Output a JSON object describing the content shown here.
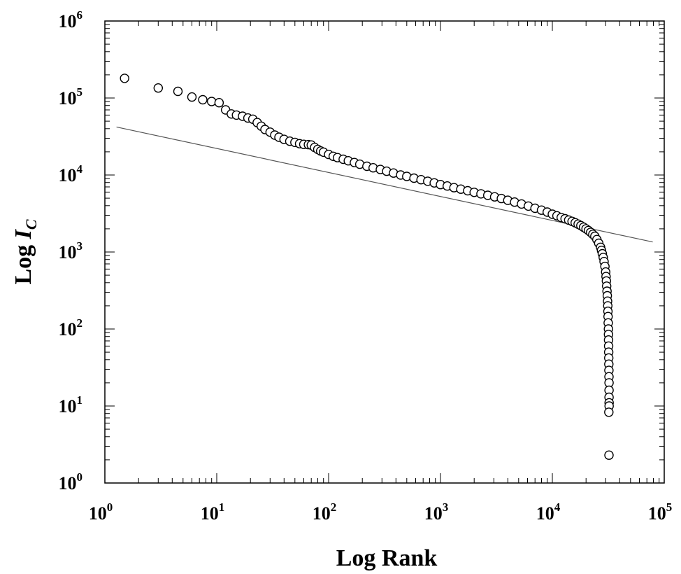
{
  "chart_data": {
    "type": "scatter",
    "title": "",
    "xlabel": "Log Rank",
    "ylabel": {
      "text": "Log ",
      "symbol": "I",
      "subscript": "C"
    },
    "x_scale": "log",
    "y_scale": "log",
    "xlim": [
      1,
      100000
    ],
    "ylim": [
      1,
      1000000
    ],
    "grid": false,
    "legend": "none",
    "x_ticks": [
      {
        "value": 1,
        "base": "10",
        "exp": "0"
      },
      {
        "value": 10,
        "base": "10",
        "exp": "1"
      },
      {
        "value": 100,
        "base": "10",
        "exp": "2"
      },
      {
        "value": 1000,
        "base": "10",
        "exp": "3"
      },
      {
        "value": 10000,
        "base": "10",
        "exp": "4"
      },
      {
        "value": 100000,
        "base": "10",
        "exp": "5"
      }
    ],
    "y_ticks": [
      {
        "value": 1,
        "base": "10",
        "exp": "0"
      },
      {
        "value": 10,
        "base": "10",
        "exp": "1"
      },
      {
        "value": 100,
        "base": "10",
        "exp": "2"
      },
      {
        "value": 1000,
        "base": "10",
        "exp": "3"
      },
      {
        "value": 10000,
        "base": "10",
        "exp": "4"
      },
      {
        "value": 100000,
        "base": "10",
        "exp": "5"
      },
      {
        "value": 1000000,
        "base": "10",
        "exp": "6"
      }
    ],
    "series": [
      {
        "marker": "open-circle",
        "color": "#000000",
        "points": [
          [
            1.5,
            180000
          ],
          [
            3.0,
            135000
          ],
          [
            4.5,
            122000
          ],
          [
            6.0,
            103000
          ],
          [
            7.5,
            95000
          ],
          [
            9.0,
            90000
          ],
          [
            10.5,
            87000
          ],
          [
            12.0,
            70000
          ],
          [
            13.5,
            62000
          ],
          [
            15.0,
            60000
          ],
          [
            17.0,
            58000
          ],
          [
            19.0,
            55000
          ],
          [
            21.0,
            53000
          ],
          [
            23.0,
            48000
          ],
          [
            25.0,
            43000
          ],
          [
            27.0,
            39000
          ],
          [
            30.0,
            36000
          ],
          [
            33.0,
            33000
          ],
          [
            36.0,
            31000
          ],
          [
            40.0,
            29000
          ],
          [
            45.0,
            27500
          ],
          [
            50.0,
            26500
          ],
          [
            55.0,
            25500
          ],
          [
            60.0,
            25000
          ],
          [
            66.0,
            24800
          ],
          [
            70.0,
            24500
          ],
          [
            75.0,
            22800
          ],
          [
            80.0,
            21500
          ],
          [
            85.0,
            20500
          ],
          [
            90.0,
            19800
          ],
          [
            100.0,
            18500
          ],
          [
            110.0,
            17500
          ],
          [
            120.0,
            16800
          ],
          [
            135.0,
            16000
          ],
          [
            150.0,
            15300
          ],
          [
            170.0,
            14500
          ],
          [
            190.0,
            13800
          ],
          [
            220.0,
            13000
          ],
          [
            250.0,
            12400
          ],
          [
            290.0,
            11800
          ],
          [
            330.0,
            11200
          ],
          [
            380.0,
            10600
          ],
          [
            440.0,
            10000
          ],
          [
            500.0,
            9600
          ],
          [
            580.0,
            9100
          ],
          [
            670.0,
            8700
          ],
          [
            770.0,
            8300
          ],
          [
            880.0,
            7900
          ],
          [
            1000.0,
            7500
          ],
          [
            1150.0,
            7200
          ],
          [
            1320.0,
            6850
          ],
          [
            1520.0,
            6550
          ],
          [
            1750.0,
            6250
          ],
          [
            2000.0,
            5950
          ],
          [
            2300.0,
            5700
          ],
          [
            2650.0,
            5450
          ],
          [
            3050.0,
            5200
          ],
          [
            3500.0,
            4950
          ],
          [
            4000.0,
            4700
          ],
          [
            4600.0,
            4450
          ],
          [
            5300.0,
            4200
          ],
          [
            6100.0,
            3950
          ],
          [
            7000.0,
            3700
          ],
          [
            8000.0,
            3500
          ],
          [
            9000.0,
            3300
          ],
          [
            10000.0,
            3100
          ],
          [
            11000.0,
            2950
          ],
          [
            12000.0,
            2800
          ],
          [
            13000.0,
            2700
          ],
          [
            14000.0,
            2600
          ],
          [
            15000.0,
            2500
          ],
          [
            16000.0,
            2400
          ],
          [
            17000.0,
            2300
          ],
          [
            18000.0,
            2200
          ],
          [
            19000.0,
            2100
          ],
          [
            20000.0,
            2000
          ],
          [
            21000.0,
            1900
          ],
          [
            22000.0,
            1800
          ],
          [
            23000.0,
            1700
          ],
          [
            24000.0,
            1600
          ],
          [
            25000.0,
            1450
          ],
          [
            26000.0,
            1300
          ],
          [
            27000.0,
            1150
          ],
          [
            27500.0,
            1050
          ],
          [
            28000.0,
            950
          ],
          [
            28500.0,
            850
          ],
          [
            29000.0,
            750
          ],
          [
            29500.0,
            650
          ],
          [
            30000.0,
            550
          ],
          [
            30200.0,
            480
          ],
          [
            30400.0,
            420
          ],
          [
            30600.0,
            360
          ],
          [
            30800.0,
            310
          ],
          [
            31000.0,
            270
          ],
          [
            31150.0,
            230
          ],
          [
            31300.0,
            200
          ],
          [
            31400.0,
            170
          ],
          [
            31500.0,
            145
          ],
          [
            31600.0,
            120
          ],
          [
            31700.0,
            100
          ],
          [
            31750.0,
            85
          ],
          [
            31800.0,
            72
          ],
          [
            31850.0,
            60
          ],
          [
            31900.0,
            50
          ],
          [
            31950.0,
            42
          ],
          [
            32000.0,
            35
          ],
          [
            32050.0,
            29
          ],
          [
            32100.0,
            24
          ],
          [
            32120.0,
            20
          ],
          [
            32140.0,
            16
          ],
          [
            32150.0,
            13
          ],
          [
            32160.0,
            11
          ],
          [
            32170.0,
            10
          ],
          [
            32000.0,
            8.3
          ],
          [
            32100.0,
            2.3
          ]
        ]
      },
      {
        "marker": "line",
        "color": "#555555",
        "points": [
          [
            1.27,
            42000
          ],
          [
            79000,
            1350
          ]
        ]
      }
    ]
  }
}
